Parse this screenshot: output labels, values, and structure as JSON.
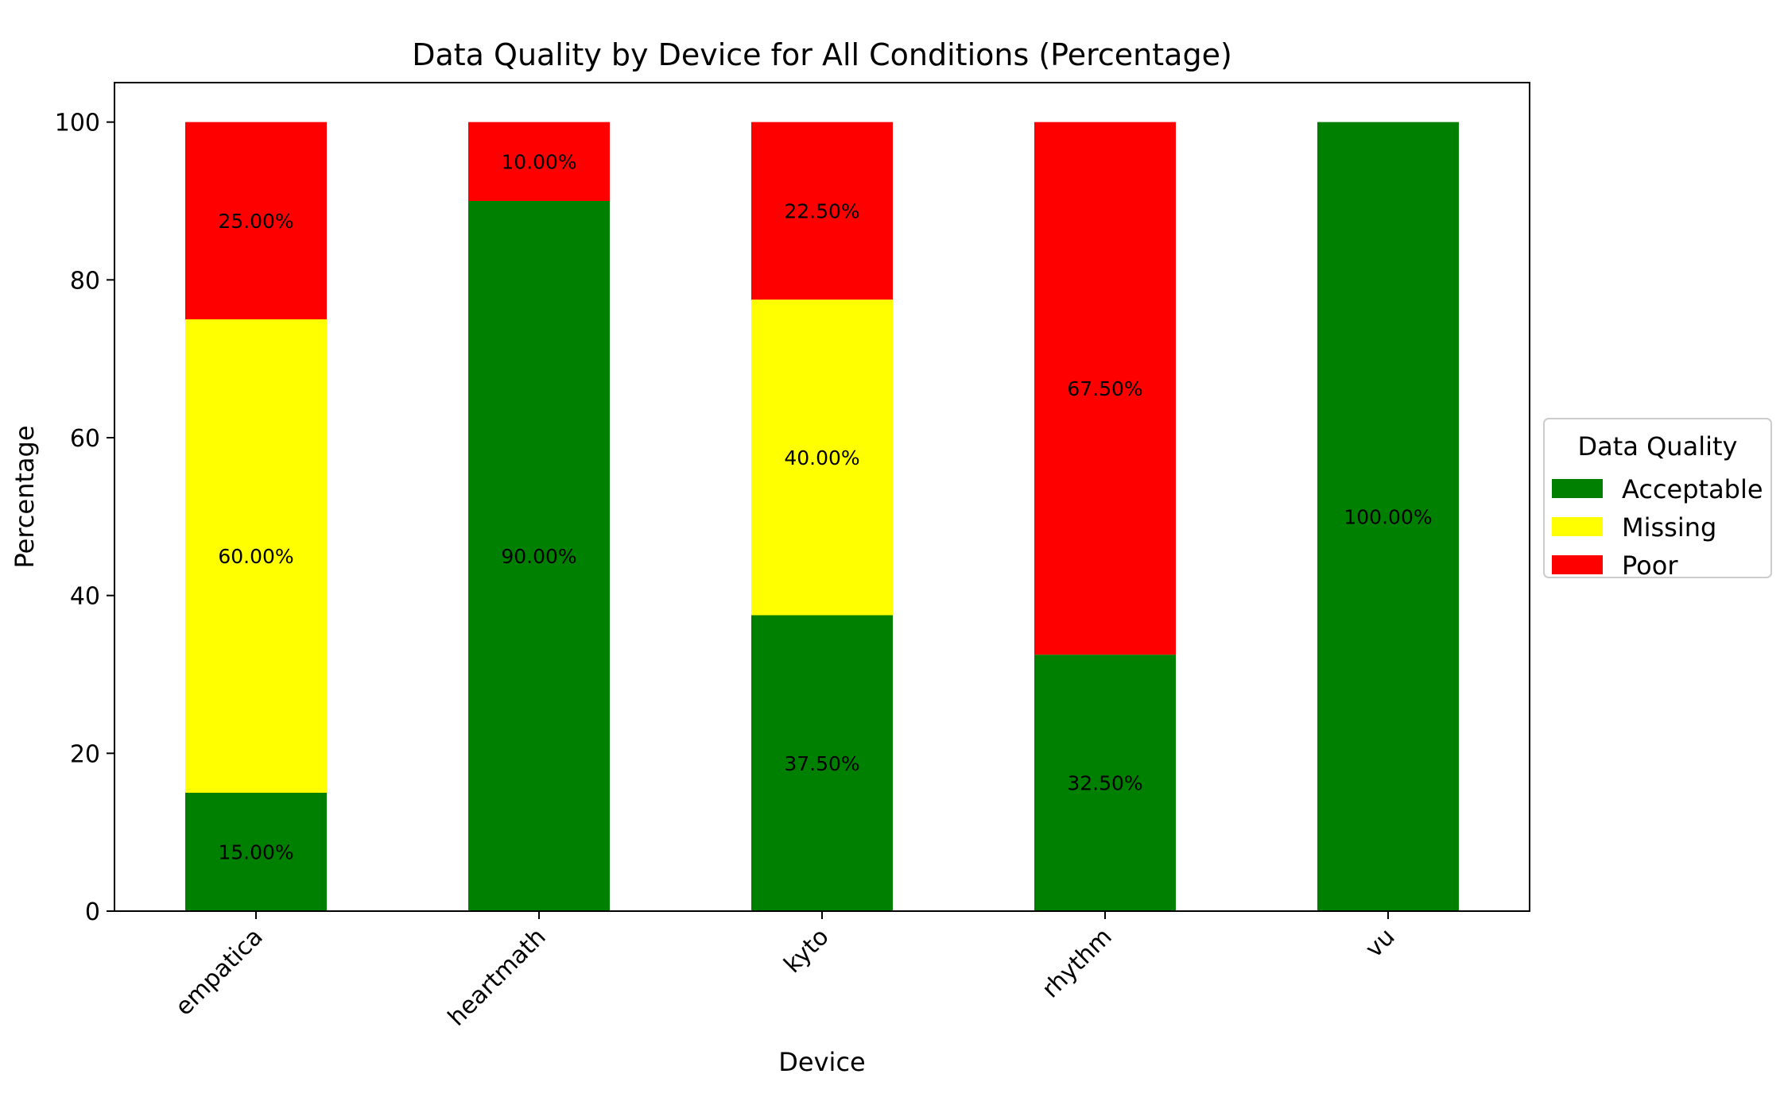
{
  "chart_data": {
    "type": "bar",
    "stacked": true,
    "title": "Data Quality by Device for All Conditions (Percentage)",
    "xlabel": "Device",
    "ylabel": "Percentage",
    "categories": [
      "empatica",
      "heartmath",
      "kyto",
      "rhythm",
      "vu"
    ],
    "ylim": [
      0,
      105
    ],
    "yticks": [
      0,
      20,
      40,
      60,
      80,
      100
    ],
    "series": [
      {
        "name": "Acceptable",
        "color": "#008000",
        "values": [
          15.0,
          90.0,
          37.5,
          32.5,
          100.0
        ],
        "labels": [
          "15.00%",
          "90.00%",
          "37.50%",
          "32.50%",
          "100.00%"
        ]
      },
      {
        "name": "Missing",
        "color": "#ffff00",
        "values": [
          60.0,
          0,
          40.0,
          0,
          0
        ],
        "labels": [
          "60.00%",
          "",
          "40.00%",
          "",
          ""
        ]
      },
      {
        "name": "Poor",
        "color": "#ff0000",
        "values": [
          25.0,
          10.0,
          22.5,
          67.5,
          0
        ],
        "labels": [
          "25.00%",
          "10.00%",
          "22.50%",
          "67.50%",
          ""
        ]
      }
    ],
    "legend": {
      "title": "Data Quality",
      "placement": "center-right outside"
    },
    "grid": false
  }
}
